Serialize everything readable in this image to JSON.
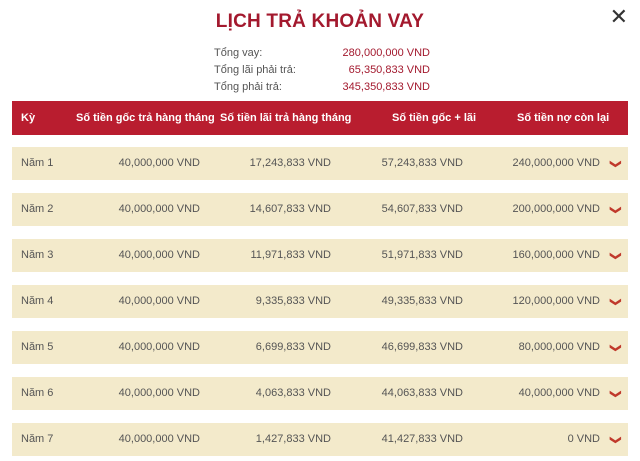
{
  "title": "LỊCH TRẢ KHOẢN VAY",
  "summary": [
    {
      "label": "Tổng vay:",
      "value": "280,000,000 VND"
    },
    {
      "label": "Tổng lãi phải trả:",
      "value": "65,350,833 VND"
    },
    {
      "label": "Tổng phải trả:",
      "value": "345,350,833 VND"
    }
  ],
  "columns": [
    "Kỳ",
    "Số tiền gốc trả hàng tháng",
    "Số tiền lãi trả hàng tháng",
    "Số tiền gốc + lãi",
    "Số tiền nợ còn lại"
  ],
  "rows": [
    [
      "Năm 1",
      "40,000,000 VND",
      "17,243,833 VND",
      "57,243,833 VND",
      "240,000,000 VND"
    ],
    [
      "Năm 2",
      "40,000,000 VND",
      "14,607,833 VND",
      "54,607,833 VND",
      "200,000,000 VND"
    ],
    [
      "Năm 3",
      "40,000,000 VND",
      "11,971,833 VND",
      "51,971,833 VND",
      "160,000,000 VND"
    ],
    [
      "Năm 4",
      "40,000,000 VND",
      "9,335,833 VND",
      "49,335,833 VND",
      "120,000,000 VND"
    ],
    [
      "Năm 5",
      "40,000,000 VND",
      "6,699,833 VND",
      "46,699,833 VND",
      "80,000,000 VND"
    ],
    [
      "Năm 6",
      "40,000,000 VND",
      "4,063,833 VND",
      "44,063,833 VND",
      "40,000,000 VND"
    ],
    [
      "Năm 7",
      "40,000,000 VND",
      "1,427,833 VND",
      "41,427,833 VND",
      "0 VND"
    ]
  ],
  "icons": {
    "close": "close-icon",
    "expand": "chevron-down-icon"
  },
  "colors": {
    "accent": "#b91d2f",
    "row_bg": "#f3eacb"
  }
}
